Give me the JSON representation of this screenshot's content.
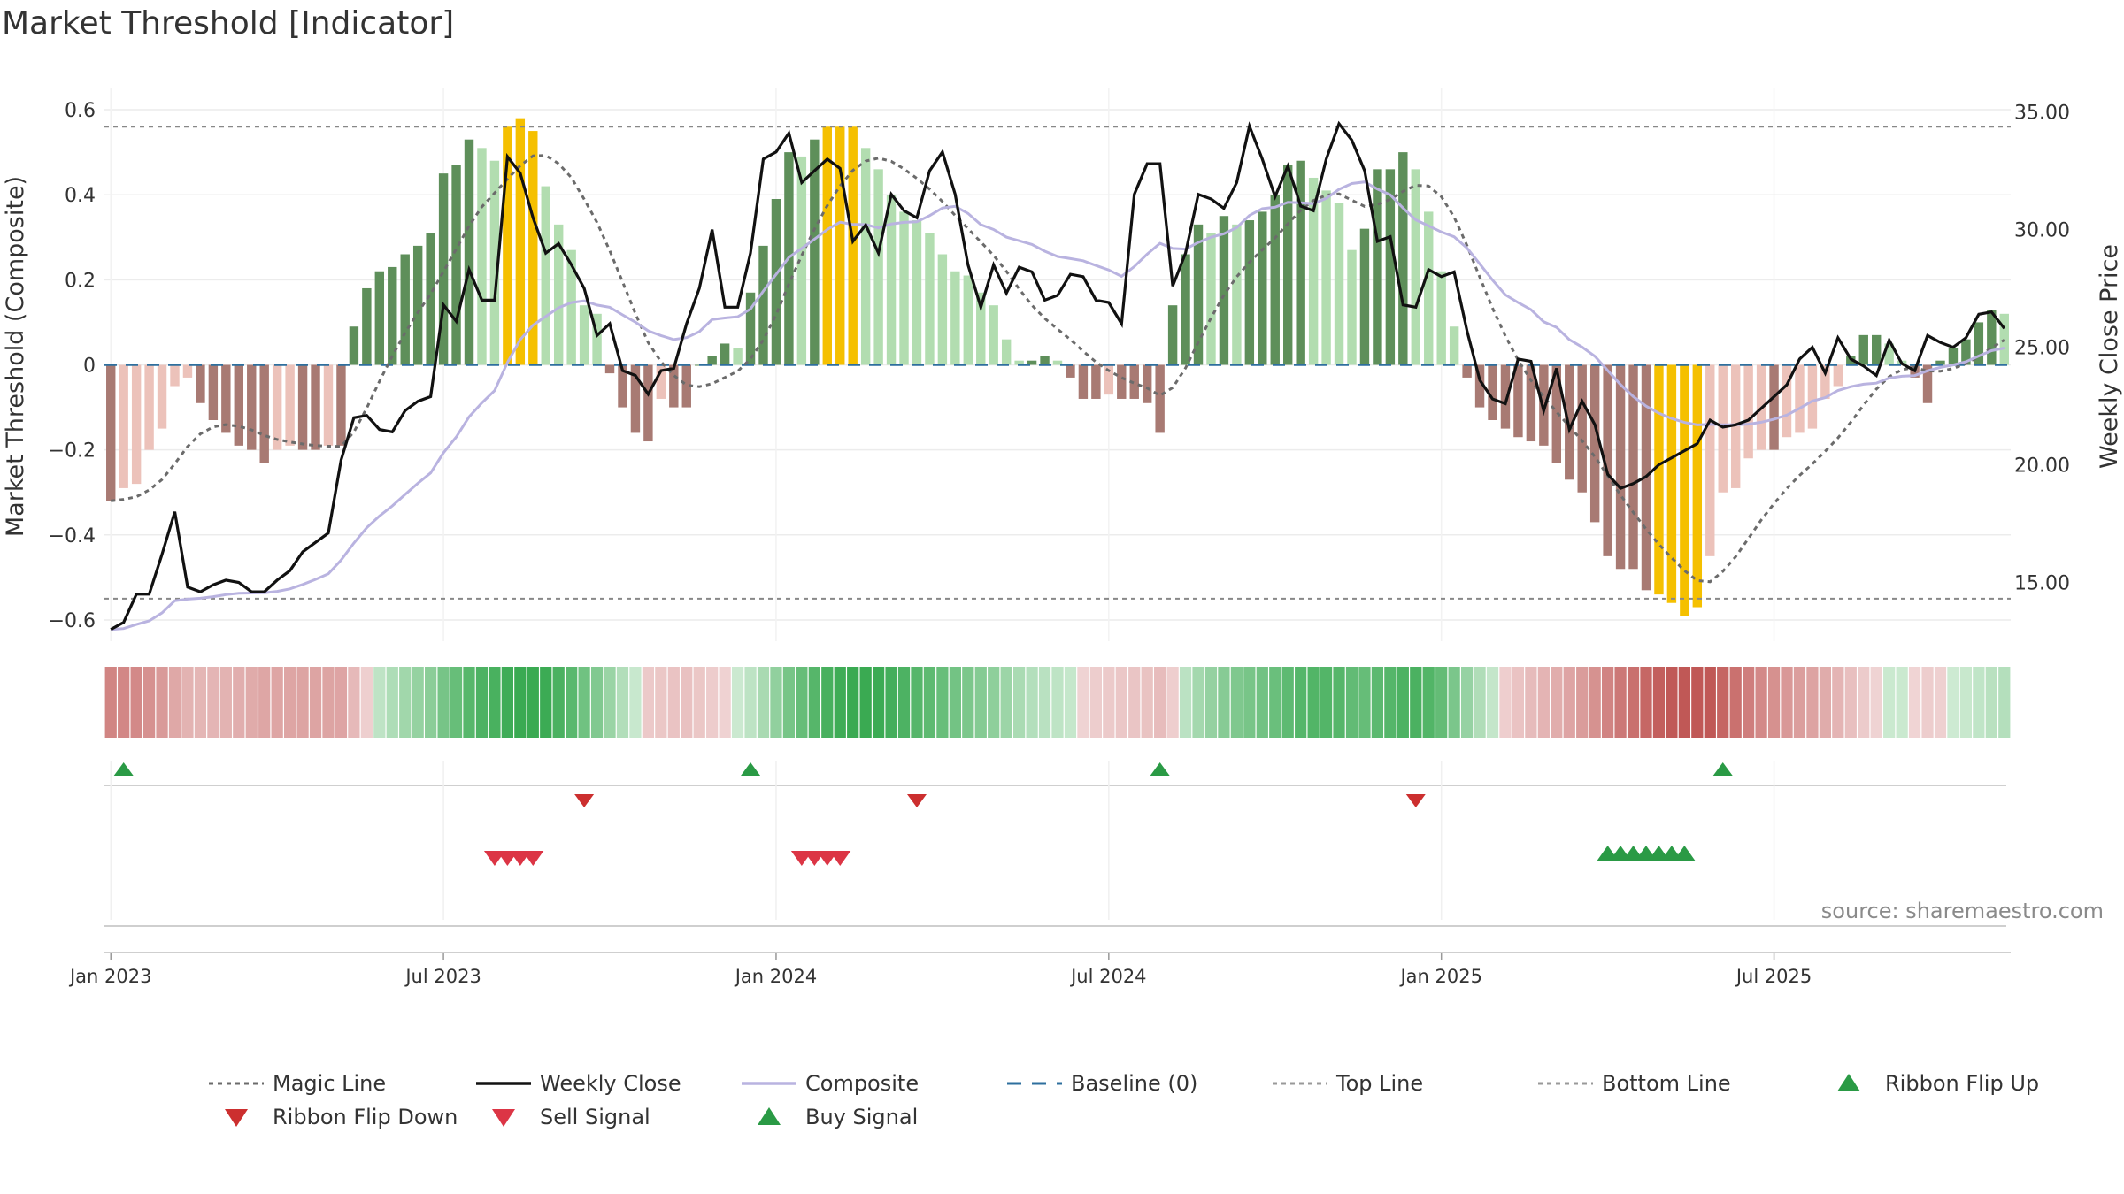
{
  "chart_data": {
    "type": "bar",
    "title": "Market Threshold [Indicator]",
    "ylabel_left": "Market Threshold (Composite)",
    "ylabel_right": "Weekly Close Price",
    "source": "source: sharemaestro.com",
    "y_left_lim": [
      -0.65,
      0.65
    ],
    "y_right_lim": [
      12.5,
      36.0
    ],
    "y_left_ticks": [
      0.6,
      0.4,
      0.2,
      0,
      -0.2,
      -0.4,
      -0.6
    ],
    "y_left_tick_labels": [
      "0.6",
      "0.4",
      "0.2",
      "0",
      "−0.2",
      "−0.4",
      "−0.6"
    ],
    "y_right_ticks": [
      35,
      30,
      25,
      20,
      15
    ],
    "y_right_tick_labels": [
      "35.00",
      "30.00",
      "25.00",
      "20.00",
      "15.00"
    ],
    "x_ticks": [
      {
        "week": 1,
        "label": "Jan 2023"
      },
      {
        "week": 27,
        "label": "Jul 2023"
      },
      {
        "week": 53,
        "label": "Jan 2024"
      },
      {
        "week": 79,
        "label": "Jul 2024"
      },
      {
        "week": 105,
        "label": "Jan 2025"
      },
      {
        "week": 131,
        "label": "Jul 2025"
      }
    ],
    "top_line": 0.56,
    "bottom_line": -0.55,
    "composite_bars": [
      -0.32,
      -0.29,
      -0.28,
      -0.2,
      -0.15,
      -0.05,
      -0.03,
      -0.09,
      -0.13,
      -0.16,
      -0.19,
      -0.2,
      -0.23,
      -0.2,
      -0.19,
      -0.2,
      -0.2,
      -0.19,
      -0.19,
      0.09,
      0.18,
      0.22,
      0.23,
      0.26,
      0.28,
      0.31,
      0.45,
      0.47,
      0.53,
      0.51,
      0.48,
      0.56,
      0.58,
      0.55,
      0.42,
      0.33,
      0.27,
      0.14,
      0.12,
      -0.02,
      -0.1,
      -0.16,
      -0.18,
      -0.08,
      -0.1,
      -0.1,
      0.0,
      0.02,
      0.05,
      0.04,
      0.17,
      0.28,
      0.39,
      0.5,
      0.49,
      0.53,
      0.56,
      0.56,
      0.56,
      0.51,
      0.46,
      0.4,
      0.36,
      0.34,
      0.31,
      0.26,
      0.22,
      0.21,
      0.17,
      0.14,
      0.06,
      0.01,
      0.01,
      0.02,
      0.01,
      -0.03,
      -0.08,
      -0.08,
      -0.07,
      -0.08,
      -0.08,
      -0.09,
      -0.16,
      0.14,
      0.26,
      0.33,
      0.31,
      0.35,
      0.33,
      0.34,
      0.36,
      0.4,
      0.47,
      0.48,
      0.44,
      0.41,
      0.38,
      0.27,
      0.32,
      0.46,
      0.46,
      0.5,
      0.46,
      0.36,
      0.22,
      0.09,
      -0.03,
      -0.1,
      -0.13,
      -0.15,
      -0.17,
      -0.18,
      -0.19,
      -0.23,
      -0.27,
      -0.3,
      -0.37,
      -0.45,
      -0.48,
      -0.48,
      -0.53,
      -0.54,
      -0.56,
      -0.59,
      -0.57,
      -0.45,
      -0.3,
      -0.29,
      -0.22,
      -0.2,
      -0.2,
      -0.17,
      -0.16,
      -0.15,
      -0.08,
      -0.05,
      0.02,
      0.07,
      0.07,
      0.05,
      0.01,
      -0.03,
      -0.09,
      0.01,
      0.04,
      0.06,
      0.1,
      0.13,
      0.12
    ],
    "weekly_close": [
      13.0,
      13.3,
      14.5,
      14.5,
      16.2,
      18.0,
      14.8,
      14.6,
      14.9,
      15.1,
      15.0,
      14.6,
      14.6,
      15.1,
      15.5,
      16.3,
      16.7,
      17.1,
      20.2,
      22.0,
      22.1,
      21.5,
      21.4,
      22.3,
      22.7,
      22.9,
      26.8,
      26.1,
      28.3,
      27.0,
      27.0,
      33.1,
      32.4,
      30.5,
      29.0,
      29.4,
      28.5,
      27.5,
      25.5,
      26.0,
      24.0,
      23.8,
      23.0,
      24.0,
      24.1,
      26.0,
      27.5,
      30.0,
      26.7,
      26.7,
      29.0,
      33.0,
      33.3,
      34.1,
      32.0,
      32.5,
      33.0,
      32.6,
      29.5,
      30.2,
      29.0,
      31.5,
      30.8,
      30.5,
      32.5,
      33.3,
      31.5,
      28.5,
      26.7,
      28.5,
      27.3,
      28.4,
      28.2,
      27.0,
      27.2,
      28.1,
      28.0,
      27.0,
      26.9,
      26.0,
      31.5,
      32.8,
      32.8,
      27.6,
      29.0,
      31.5,
      31.3,
      30.9,
      32.0,
      34.4,
      33.0,
      31.4,
      32.7,
      31.0,
      30.8,
      33.0,
      34.5,
      33.8,
      32.5,
      29.5,
      29.7,
      26.8,
      26.7,
      28.3,
      28.0,
      28.2,
      25.7,
      23.6,
      22.8,
      22.6,
      24.5,
      24.4,
      22.3,
      24.1,
      21.5,
      22.7,
      21.7,
      19.6,
      19.0,
      19.2,
      19.5,
      20.0,
      20.3,
      20.6,
      20.9,
      21.9,
      21.6,
      21.7,
      21.9,
      22.4,
      22.9,
      23.4,
      24.5,
      25.0,
      23.9,
      25.4,
      24.5,
      24.2,
      23.8,
      25.3,
      24.3,
      24.0,
      25.5,
      25.2,
      25.0,
      25.4,
      26.4,
      26.5,
      25.8
    ]
  },
  "legend": [
    {
      "label": "Magic Line",
      "kind": "dotted-line",
      "color": "#6b6b6b"
    },
    {
      "label": "Weekly Close",
      "kind": "solid-line",
      "color": "#111111"
    },
    {
      "label": "Composite",
      "kind": "solid-line",
      "color": "#b9b3e0"
    },
    {
      "label": "Baseline (0)",
      "kind": "dashed-line",
      "color": "#2e6f9e"
    },
    {
      "label": "Top Line",
      "kind": "dotted-line",
      "color": "#999999"
    },
    {
      "label": "Bottom Line",
      "kind": "dotted-line",
      "color": "#999999"
    },
    {
      "label": "Ribbon Flip Up",
      "kind": "triangle-up",
      "color": "#2a9a45"
    },
    {
      "label": "Ribbon Flip Down",
      "kind": "triangle-down",
      "color": "#cc2f2f"
    },
    {
      "label": "Sell Signal",
      "kind": "triangle-down",
      "color": "#dc3545"
    },
    {
      "label": "Buy Signal",
      "kind": "triangle-up",
      "color": "#2a9a45"
    }
  ],
  "signals": {
    "ribbon_flip_up_weeks": [
      2,
      51,
      83,
      127
    ],
    "ribbon_flip_down_weeks": [
      38,
      64,
      103
    ],
    "sell_signal_weeks": [
      31,
      32,
      33,
      34,
      55,
      56,
      57,
      58
    ],
    "buy_signal_weeks": [
      118,
      119,
      120,
      121,
      122,
      123,
      124
    ]
  },
  "colors": {
    "pos_strong": "#5e8f5a",
    "pos_weak": "#b2ddb0",
    "neg_strong": "#a87a73",
    "neg_weak": "#ecc2ba",
    "extreme": "#f5c000",
    "close_line": "#111111",
    "composite_line": "#b9b3e0",
    "magic_line": "#6b6b6b",
    "baseline": "#2e6f9e"
  }
}
